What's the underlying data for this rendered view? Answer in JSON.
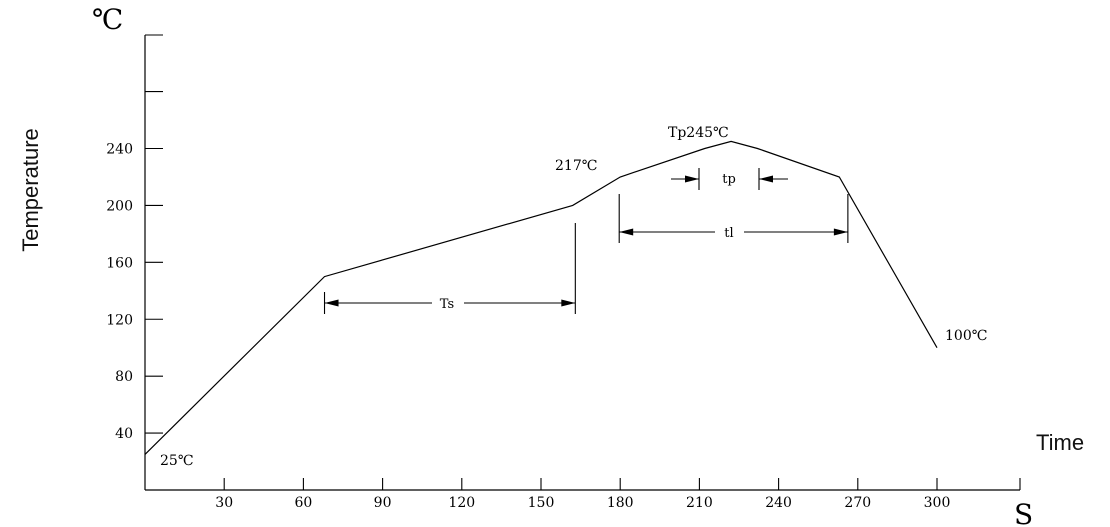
{
  "chart_data": {
    "type": "line",
    "title": "",
    "xlabel": "Time",
    "ylabel": "Temperature",
    "x_unit": "S",
    "y_unit": "℃",
    "x_ticks": [
      30,
      60,
      90,
      120,
      150,
      180,
      210,
      240,
      270,
      300
    ],
    "y_ticks": [
      40,
      80,
      120,
      160,
      200,
      240
    ],
    "xlim": [
      0,
      335
    ],
    "ylim": [
      0,
      300
    ],
    "grid": false,
    "series": [
      {
        "points": [
          [
            0,
            25
          ],
          [
            68,
            150
          ],
          [
            162,
            200
          ],
          [
            180,
            220
          ],
          [
            212,
            240
          ],
          [
            222,
            245
          ],
          [
            232,
            240
          ],
          [
            263,
            220
          ],
          [
            300,
            100
          ]
        ]
      }
    ],
    "annotations": {
      "start": "25℃",
      "liquidus": "217℃",
      "peak": "Tp245℃",
      "end": "100℃",
      "ts": "Ts",
      "tl": "tl",
      "tp": "tp"
    },
    "intervals": {
      "ts": [
        68,
        163
      ],
      "tl": [
        180,
        267
      ],
      "tp": [
        211,
        237
      ]
    }
  }
}
